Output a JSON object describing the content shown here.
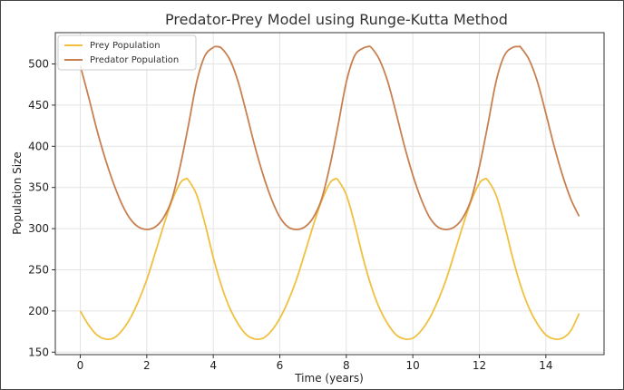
{
  "chart_data": {
    "type": "line",
    "title": "Predator-Prey Model using Runge-Kutta Method",
    "xlabel": "Time (years)",
    "ylabel": "Population Size",
    "xlim": [
      -0.75,
      15.75
    ],
    "ylim": [
      147,
      538
    ],
    "xticks": [
      0,
      2,
      4,
      6,
      8,
      10,
      12,
      14
    ],
    "yticks": [
      150,
      200,
      250,
      300,
      350,
      400,
      450,
      500
    ],
    "grid": true,
    "legend_position": "top-left",
    "series": [
      {
        "name": "Prey Population",
        "color": "#f0c040",
        "x": [
          0,
          0.25,
          0.5,
          0.75,
          1,
          1.25,
          1.5,
          1.75,
          2,
          2.25,
          2.5,
          2.75,
          3,
          3.15,
          3.25,
          3.5,
          3.75,
          4,
          4.25,
          4.5,
          4.75,
          5,
          5.25,
          5.5,
          5.75,
          6,
          6.25,
          6.5,
          6.75,
          7,
          7.25,
          7.5,
          7.65,
          7.75,
          8,
          8.25,
          8.5,
          8.75,
          9,
          9.25,
          9.5,
          9.75,
          10,
          10.25,
          10.5,
          10.75,
          11,
          11.25,
          11.5,
          11.75,
          12,
          12.15,
          12.25,
          12.5,
          12.75,
          13,
          13.25,
          13.5,
          13.75,
          14,
          14.25,
          14.5,
          14.75,
          15
        ],
        "y": [
          200,
          183,
          171,
          166,
          167,
          176,
          191,
          212,
          238,
          270,
          303,
          333,
          355,
          360,
          359,
          341,
          306,
          265,
          230,
          203,
          184,
          171,
          166,
          167,
          176,
          191,
          212,
          238,
          270,
          303,
          333,
          355,
          360,
          359,
          341,
          306,
          265,
          230,
          203,
          184,
          171,
          166,
          167,
          176,
          191,
          212,
          238,
          270,
          303,
          333,
          355,
          360,
          359,
          341,
          306,
          265,
          230,
          203,
          184,
          171,
          166,
          167,
          176,
          197
        ]
      },
      {
        "name": "Predator Population",
        "color": "#c88050",
        "x": [
          0,
          0.25,
          0.5,
          0.75,
          1,
          1.25,
          1.5,
          1.75,
          2,
          2.25,
          2.5,
          2.75,
          3,
          3.25,
          3.5,
          3.75,
          4,
          4.1,
          4.25,
          4.5,
          4.75,
          5,
          5.25,
          5.5,
          5.75,
          6,
          6.25,
          6.5,
          6.75,
          7,
          7.25,
          7.5,
          7.75,
          8,
          8.25,
          8.5,
          8.65,
          8.75,
          9,
          9.25,
          9.5,
          9.75,
          10,
          10.25,
          10.5,
          10.75,
          11,
          11.25,
          11.5,
          11.75,
          12,
          12.25,
          12.5,
          12.75,
          13,
          13.2,
          13.25,
          13.5,
          13.75,
          14,
          14.25,
          14.5,
          14.75,
          15
        ],
        "y": [
          498,
          460,
          420,
          385,
          355,
          330,
          312,
          302,
          299,
          302,
          313,
          335,
          375,
          425,
          478,
          510,
          520,
          521,
          519,
          505,
          478,
          440,
          400,
          365,
          336,
          314,
          302,
          299,
          302,
          313,
          335,
          375,
          425,
          478,
          510,
          519,
          521,
          520,
          505,
          478,
          440,
          400,
          365,
          336,
          314,
          302,
          299,
          302,
          313,
          335,
          375,
          425,
          478,
          510,
          520,
          521,
          520,
          505,
          478,
          440,
          400,
          365,
          336,
          315
        ]
      }
    ]
  }
}
